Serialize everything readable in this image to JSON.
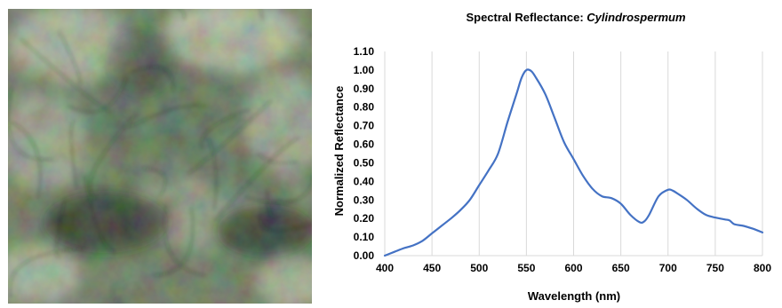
{
  "micrograph": {
    "colors": {
      "base": "#5c6b4e",
      "dark": "#0d120e",
      "light": "#c9cfb8",
      "green": "#3f5a43"
    }
  },
  "chart_data": {
    "type": "line",
    "title_prefix": "Spectral Reflectance: ",
    "title_species": "Cylindrospermum",
    "xlabel": "Wavelength (nm)",
    "ylabel": "Normalized Reflectance",
    "xlim": [
      400,
      800
    ],
    "ylim": [
      0,
      1.1
    ],
    "x_ticks": [
      "400",
      "450",
      "500",
      "550",
      "600",
      "650",
      "700",
      "750",
      "800"
    ],
    "y_ticks": [
      "0.00",
      "0.10",
      "0.20",
      "0.30",
      "0.40",
      "0.50",
      "0.60",
      "0.70",
      "0.80",
      "0.90",
      "1.00",
      "1.10"
    ],
    "grid": "vertical",
    "line_color": "#4472c4",
    "series": [
      {
        "x": [
          400,
          410,
          420,
          430,
          440,
          450,
          460,
          470,
          480,
          490,
          500,
          510,
          520,
          530,
          540,
          545,
          550,
          555,
          560,
          570,
          580,
          590,
          600,
          610,
          620,
          630,
          640,
          650,
          660,
          670,
          675,
          680,
          690,
          700,
          705,
          710,
          720,
          730,
          740,
          750,
          760,
          765,
          770,
          780,
          790,
          800
        ],
        "y": [
          0.0,
          0.02,
          0.04,
          0.055,
          0.08,
          0.12,
          0.16,
          0.2,
          0.245,
          0.3,
          0.38,
          0.46,
          0.55,
          0.72,
          0.88,
          0.96,
          1.0,
          0.995,
          0.96,
          0.87,
          0.74,
          0.61,
          0.52,
          0.43,
          0.36,
          0.32,
          0.31,
          0.28,
          0.22,
          0.18,
          0.185,
          0.22,
          0.32,
          0.355,
          0.35,
          0.335,
          0.3,
          0.255,
          0.22,
          0.205,
          0.195,
          0.19,
          0.17,
          0.16,
          0.145,
          0.125
        ]
      }
    ]
  }
}
